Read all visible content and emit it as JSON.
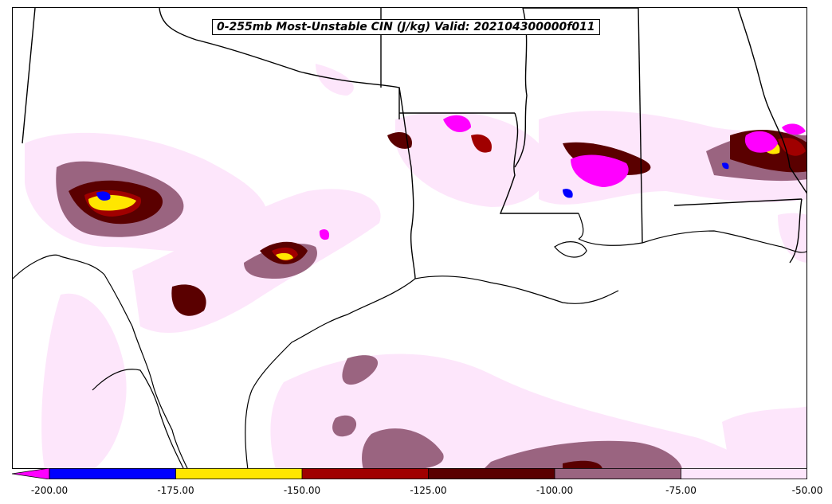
{
  "title": "0-255mb Most-Unstable CIN (J/kg) Valid: 202104300000f011",
  "colorbar": {
    "ticks": [
      "-200.00",
      "-175.00",
      "-150.00",
      "-125.00",
      "-100.00",
      "-75.00",
      "-50.00"
    ],
    "bins": [
      {
        "from": -225,
        "to": -200,
        "color": "#ff00ff"
      },
      {
        "from": -200,
        "to": -175,
        "color": "#0000ff"
      },
      {
        "from": -175,
        "to": -150,
        "color": "#ffe600"
      },
      {
        "from": -150,
        "to": -125,
        "color": "#a00000"
      },
      {
        "from": -125,
        "to": -100,
        "color": "#5a0000"
      },
      {
        "from": -100,
        "to": -75,
        "color": "#9a6480"
      },
      {
        "from": -75,
        "to": -50,
        "color": "#fde6fb"
      }
    ],
    "extend": "min"
  }
}
